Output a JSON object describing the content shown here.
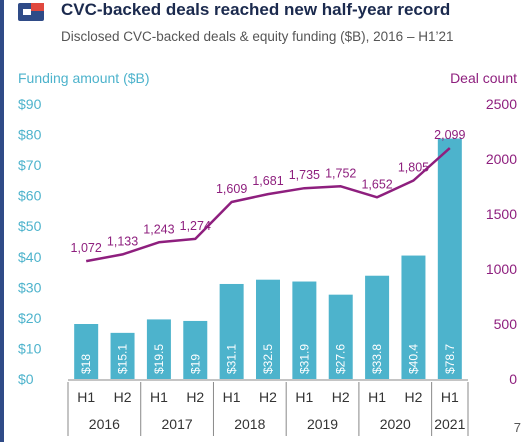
{
  "header": {
    "title": "CVC-backed deals reached new half-year record",
    "subtitle": "Disclosed CVC-backed deals & equity funding ($B), 2016 – H1’21"
  },
  "footer": {
    "page_number": "7"
  },
  "chart_data": {
    "type": "bar",
    "title": "CVC-backed deals reached new half-year record",
    "subtitle": "Disclosed CVC-backed deals & equity funding ($B), 2016 – H1’21",
    "y_left_label": "Funding amount ($B)",
    "y_right_label": "Deal count",
    "categories": [
      "H1 2016",
      "H2 2016",
      "H1 2017",
      "H2 2017",
      "H1 2018",
      "H2 2018",
      "H1 2019",
      "H2 2019",
      "H1 2020",
      "H2 2020",
      "H1 2021"
    ],
    "halves": [
      "H1",
      "H2",
      "H1",
      "H2",
      "H1",
      "H2",
      "H1",
      "H2",
      "H1",
      "H2",
      "H1"
    ],
    "years": [
      {
        "label": "2016",
        "span": 2
      },
      {
        "label": "2017",
        "span": 2
      },
      {
        "label": "2018",
        "span": 2
      },
      {
        "label": "2019",
        "span": 2
      },
      {
        "label": "2020",
        "span": 2
      },
      {
        "label": "2021",
        "span": 1
      }
    ],
    "series": [
      {
        "type": "bar",
        "axis": "left",
        "values": [
          18,
          15.1,
          19.5,
          19,
          31.1,
          32.5,
          31.9,
          27.6,
          33.8,
          40.4,
          78.7
        ],
        "labels": [
          "$18",
          "$15.1",
          "$19.5",
          "$19",
          "$31.1",
          "$32.5",
          "$31.9",
          "$27.6",
          "$33.8",
          "$40.4",
          "$78.7"
        ],
        "color": "#4db3cc"
      },
      {
        "type": "line",
        "axis": "right",
        "values": [
          1072,
          1133,
          1243,
          1274,
          1609,
          1681,
          1735,
          1752,
          1652,
          1805,
          2099
        ],
        "labels": [
          "1,072",
          "1,133",
          "1,243",
          "1,274",
          "1,609",
          "1,681",
          "1,735",
          "1,752",
          "1,652",
          "1,805",
          "2,099"
        ],
        "color": "#8e1f7e"
      }
    ],
    "y_left": {
      "min": 0,
      "max": 90,
      "ticks": [
        0,
        10,
        20,
        30,
        40,
        50,
        60,
        70,
        80,
        90
      ],
      "tick_labels": [
        "$0",
        "$10",
        "$20",
        "$30",
        "$40",
        "$50",
        "$60",
        "$70",
        "$80",
        "$90"
      ]
    },
    "y_right": {
      "min": 0,
      "max": 2500,
      "ticks": [
        0,
        500,
        1000,
        1500,
        2000,
        2500
      ],
      "tick_labels": [
        "0",
        "500",
        "1000",
        "1500",
        "2000",
        "2500"
      ]
    },
    "grid": false
  }
}
